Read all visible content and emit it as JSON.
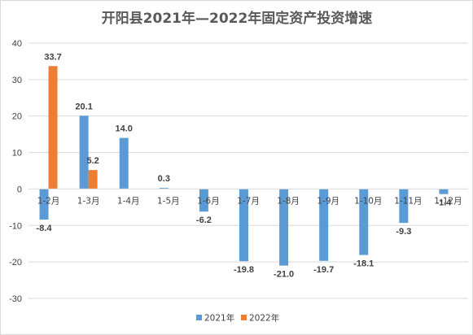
{
  "chart_data": {
    "type": "bar",
    "title": "开阳县2021年—2022年固定资产投资增速",
    "categories": [
      "1-2月",
      "1-3月",
      "1-4月",
      "1-5月",
      "1-6月",
      "1-7月",
      "1-8月",
      "1-9月",
      "1-10月",
      "1-11月",
      "1-12月"
    ],
    "series": [
      {
        "name": "2021年",
        "color": "#5b9bd5",
        "values": [
          -8.4,
          20.1,
          14.0,
          0.3,
          -6.2,
          -19.8,
          -21.0,
          -19.7,
          -18.1,
          -9.3,
          -1.4
        ],
        "labels": [
          "-8.4",
          "20.1",
          "14.0",
          "0.3",
          "-6.2",
          "-19.8",
          "-21.0",
          "-19.7",
          "-18.1",
          "-9.3",
          "-1.4"
        ]
      },
      {
        "name": "2022年",
        "color": "#ed7d31",
        "values": [
          33.7,
          5.2,
          null,
          null,
          null,
          null,
          null,
          null,
          null,
          null,
          null
        ],
        "labels": [
          "33.7",
          "5.2",
          null,
          null,
          null,
          null,
          null,
          null,
          null,
          null,
          null
        ]
      }
    ],
    "yticks": [
      40,
      30,
      20,
      10,
      0,
      -10,
      -20,
      -30
    ],
    "ylim": [
      -30,
      40
    ],
    "grid": true,
    "legend": "bottom"
  }
}
